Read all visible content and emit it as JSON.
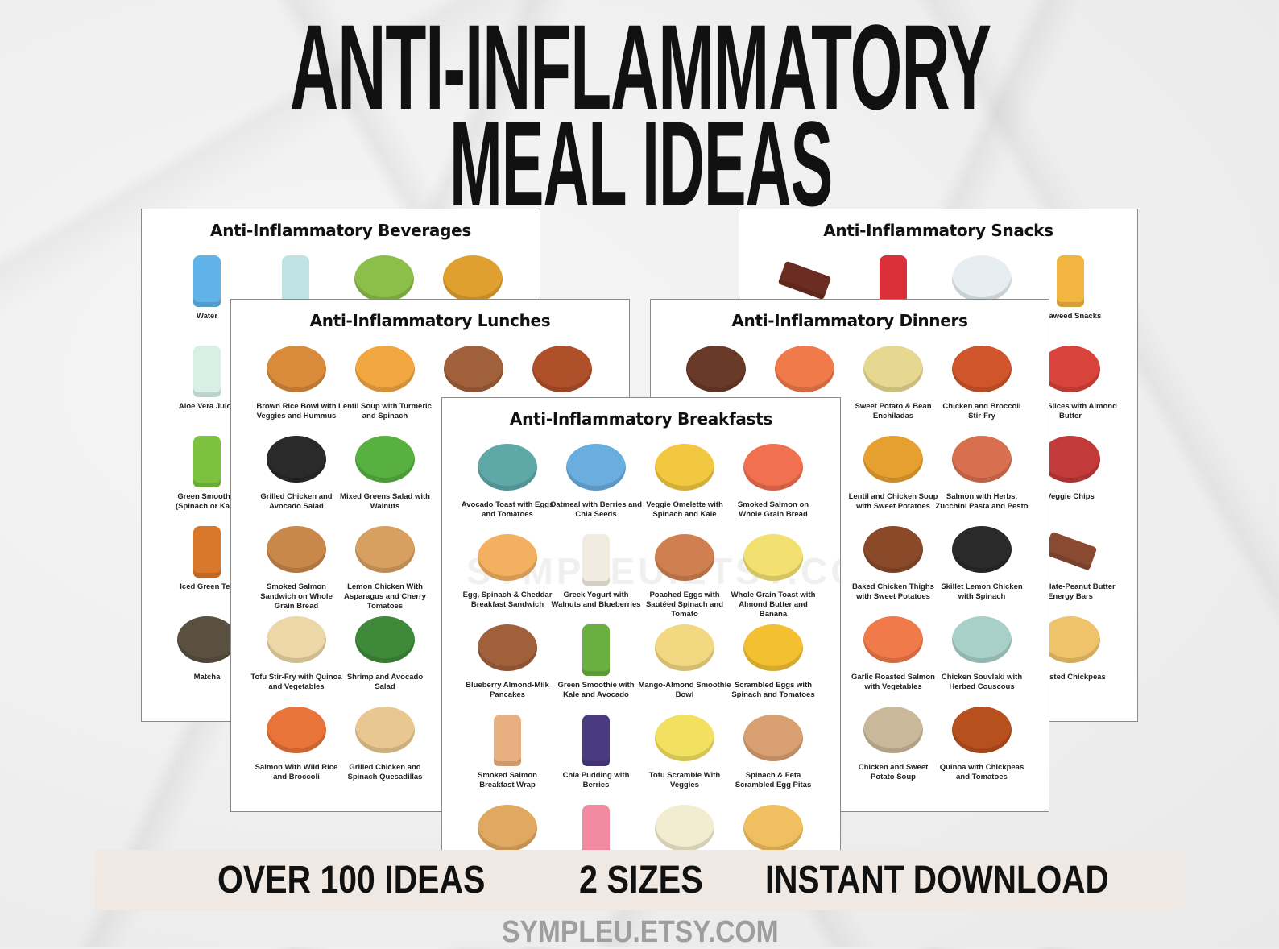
{
  "header": {
    "title_line1": "ANTI-INFLAMMATORY",
    "title_line2": "MEAL IDEAS"
  },
  "pages": {
    "beverages": {
      "title": "Anti-Inflammatory Beverages",
      "items": [
        {
          "label": "Water",
          "color": "#5fb3e8",
          "shape": "drink"
        },
        {
          "label": "",
          "color": "#bfe3e3",
          "shape": "drink"
        },
        {
          "label": "",
          "color": "#8cbf4a",
          "shape": "bowl"
        },
        {
          "label": "",
          "color": "#e0a030",
          "shape": "bowl"
        },
        {
          "label": "Aloe Vera Juice",
          "color": "#d8efe6",
          "shape": "drink"
        },
        {
          "label": "",
          "color": "#ddd",
          "shape": "bowl"
        },
        {
          "label": "",
          "color": "#ddd",
          "shape": "bowl"
        },
        {
          "label": "",
          "color": "#ddd",
          "shape": "bowl"
        },
        {
          "label": "Green Smoothie (Spinach or Kale)",
          "color": "#7cc23e",
          "shape": "drink"
        },
        {
          "label": "",
          "color": "#ddd",
          "shape": "bowl"
        },
        {
          "label": "",
          "color": "#ddd",
          "shape": "bowl"
        },
        {
          "label": "",
          "color": "#ddd",
          "shape": "bowl"
        },
        {
          "label": "Iced Green Tea",
          "color": "#d9772a",
          "shape": "drink"
        },
        {
          "label": "",
          "color": "#ddd",
          "shape": "bowl"
        },
        {
          "label": "",
          "color": "#ddd",
          "shape": "bowl"
        },
        {
          "label": "",
          "color": "#ddd",
          "shape": "bowl"
        },
        {
          "label": "Matcha",
          "color": "#5a5040",
          "shape": "bowl"
        }
      ]
    },
    "snacks": {
      "title": "Anti-Inflammatory Snacks",
      "items": [
        {
          "label": "",
          "color": "#6b2c22",
          "shape": "bar"
        },
        {
          "label": "",
          "color": "#d9303a",
          "shape": "drink"
        },
        {
          "label": "",
          "color": "#e6eef2",
          "shape": "bowl"
        },
        {
          "label": "Seaweed Snacks",
          "color": "#f2b640",
          "shape": "drink"
        },
        {
          "label": "",
          "color": "#ddd",
          "shape": "bowl"
        },
        {
          "label": "",
          "color": "#ddd",
          "shape": "bowl"
        },
        {
          "label": "",
          "color": "#ddd",
          "shape": "bowl"
        },
        {
          "label": "Apple Slices with Almond Butter",
          "color": "#d8433a",
          "shape": "bowl"
        },
        {
          "label": "",
          "color": "#ddd",
          "shape": "bowl"
        },
        {
          "label": "",
          "color": "#ddd",
          "shape": "bowl"
        },
        {
          "label": "",
          "color": "#ddd",
          "shape": "bowl"
        },
        {
          "label": "Veggie Chips",
          "color": "#c23a3a",
          "shape": "bowl"
        },
        {
          "label": "",
          "color": "#ddd",
          "shape": "bowl"
        },
        {
          "label": "",
          "color": "#ddd",
          "shape": "bowl"
        },
        {
          "label": "",
          "color": "#ddd",
          "shape": "bowl"
        },
        {
          "label": "Chocolate-Peanut Butter Energy Bars",
          "color": "#8a4a32",
          "shape": "bar"
        },
        {
          "label": "",
          "color": "#ddd",
          "shape": "bowl"
        },
        {
          "label": "",
          "color": "#ddd",
          "shape": "bowl"
        },
        {
          "label": "",
          "color": "#ddd",
          "shape": "bowl"
        },
        {
          "label": "Roasted Chickpeas",
          "color": "#f0c36a",
          "shape": "bowl"
        }
      ]
    },
    "lunches": {
      "title": "Anti-Inflammatory Lunches",
      "items": [
        {
          "label": "Brown Rice Bowl with Veggies and Hummus",
          "color": "#d98a3a",
          "shape": "bowl"
        },
        {
          "label": "Lentil Soup with Turmeric and Spinach",
          "color": "#f2a640",
          "shape": "bowl"
        },
        {
          "label": "",
          "color": "#a0603a",
          "shape": "bowl"
        },
        {
          "label": "",
          "color": "#b0502a",
          "shape": "bowl"
        },
        {
          "label": "Grilled Chicken and Avocado Salad",
          "color": "#2a2a2a",
          "shape": "bowl"
        },
        {
          "label": "Mixed Greens Salad with Walnuts",
          "color": "#58b040",
          "shape": "bowl"
        },
        {
          "label": "",
          "color": "#ddd",
          "shape": "bowl"
        },
        {
          "label": "",
          "color": "#ddd",
          "shape": "bowl"
        },
        {
          "label": "Smoked Salmon Sandwich on Whole Grain Bread",
          "color": "#c9874a",
          "shape": "bowl"
        },
        {
          "label": "Lemon Chicken With Asparagus and Cherry Tomatoes",
          "color": "#d8a060",
          "shape": "bowl"
        },
        {
          "label": "",
          "color": "#ddd",
          "shape": "bowl"
        },
        {
          "label": "",
          "color": "#ddd",
          "shape": "bowl"
        },
        {
          "label": "Tofu Stir-Fry with Quinoa and Vegetables",
          "color": "#ecd7a6",
          "shape": "bowl"
        },
        {
          "label": "Shrimp and Avocado Salad",
          "color": "#3f8a3a",
          "shape": "bowl"
        },
        {
          "label": "",
          "color": "#ddd",
          "shape": "bowl"
        },
        {
          "label": "",
          "color": "#ddd",
          "shape": "bowl"
        },
        {
          "label": "Salmon With Wild Rice and Broccoli",
          "color": "#e8743a",
          "shape": "bowl"
        },
        {
          "label": "Grilled Chicken and Spinach Quesadillas",
          "color": "#e8c890",
          "shape": "bowl"
        }
      ]
    },
    "dinners": {
      "title": "Anti-Inflammatory Dinners",
      "items": [
        {
          "label": "",
          "color": "#6a3a28",
          "shape": "bowl"
        },
        {
          "label": "",
          "color": "#f07a4a",
          "shape": "bowl"
        },
        {
          "label": "Sweet Potato & Bean Enchiladas",
          "color": "#e6d890",
          "shape": "bowl"
        },
        {
          "label": "Chicken and Broccoli Stir-Fry",
          "color": "#d0552a",
          "shape": "bowl"
        },
        {
          "label": "",
          "color": "#ddd",
          "shape": "bowl"
        },
        {
          "label": "",
          "color": "#ddd",
          "shape": "bowl"
        },
        {
          "label": "Lentil and Chicken Soup with Sweet Potatoes",
          "color": "#e6a030",
          "shape": "bowl"
        },
        {
          "label": "Salmon with Herbs, Zucchini Pasta and Pesto",
          "color": "#d87050",
          "shape": "bowl"
        },
        {
          "label": "",
          "color": "#ddd",
          "shape": "bowl"
        },
        {
          "label": "",
          "color": "#ddd",
          "shape": "bowl"
        },
        {
          "label": "Baked Chicken Thighs with Sweet Potatoes",
          "color": "#8a4a2a",
          "shape": "bowl"
        },
        {
          "label": "Skillet Lemon Chicken with Spinach",
          "color": "#2a2a2a",
          "shape": "bowl"
        },
        {
          "label": "",
          "color": "#ddd",
          "shape": "bowl"
        },
        {
          "label": "",
          "color": "#ddd",
          "shape": "bowl"
        },
        {
          "label": "Garlic Roasted Salmon with Vegetables",
          "color": "#f07a4a",
          "shape": "bowl"
        },
        {
          "label": "Chicken Souvlaki with Herbed Couscous",
          "color": "#a8d0c8",
          "shape": "bowl"
        },
        {
          "label": "",
          "color": "#ddd",
          "shape": "bowl"
        },
        {
          "label": "",
          "color": "#ddd",
          "shape": "bowl"
        },
        {
          "label": "Chicken and Sweet Potato Soup",
          "color": "#c9b89a",
          "shape": "bowl"
        },
        {
          "label": "Quinoa with Chickpeas and Tomatoes",
          "color": "#b8501e",
          "shape": "bowl"
        }
      ]
    },
    "breakfasts": {
      "title": "Anti-Inflammatory Breakfasts",
      "watermark": "SYMPLEU.ETSY.COM",
      "items": [
        {
          "label": "Avocado Toast with Eggs and Tomatoes",
          "color": "#5fa8a8",
          "shape": "bowl"
        },
        {
          "label": "Oatmeal with Berries and Chia Seeds",
          "color": "#6aaee0",
          "shape": "bowl"
        },
        {
          "label": "Veggie Omelette with Spinach and Kale",
          "color": "#f2c840",
          "shape": "bowl"
        },
        {
          "label": "Smoked Salmon on Whole Grain Bread",
          "color": "#f07050",
          "shape": "bowl"
        },
        {
          "label": "Egg, Spinach & Cheddar Breakfast Sandwich",
          "color": "#f2b060",
          "shape": "bowl"
        },
        {
          "label": "Greek Yogurt with Walnuts and Blueberries",
          "color": "#f2ece0",
          "shape": "drink"
        },
        {
          "label": "Poached Eggs with Sautéed Spinach and Tomato",
          "color": "#d08050",
          "shape": "bowl"
        },
        {
          "label": "Whole Grain Toast with Almond Butter and Banana",
          "color": "#f2e070",
          "shape": "bowl"
        },
        {
          "label": "Blueberry Almond-Milk Pancakes",
          "color": "#a0603a",
          "shape": "bowl"
        },
        {
          "label": "Green Smoothie with Kale and Avocado",
          "color": "#6ab040",
          "shape": "drink"
        },
        {
          "label": "Mango-Almond Smoothie Bowl",
          "color": "#f2d880",
          "shape": "bowl"
        },
        {
          "label": "Scrambled Eggs with Spinach and Tomatoes",
          "color": "#f2c030",
          "shape": "bowl"
        },
        {
          "label": "Smoked Salmon Breakfast Wrap",
          "color": "#e8b080",
          "shape": "drink"
        },
        {
          "label": "Chia Pudding with Berries",
          "color": "#4a3a80",
          "shape": "drink"
        },
        {
          "label": "Tofu Scramble With Veggies",
          "color": "#f2e060",
          "shape": "bowl"
        },
        {
          "label": "Spinach & Feta Scrambled Egg Pitas",
          "color": "#d8a070",
          "shape": "bowl"
        },
        {
          "label": "",
          "color": "#e0a860",
          "shape": "bowl"
        },
        {
          "label": "",
          "color": "#f08aa0",
          "shape": "drink"
        },
        {
          "label": "",
          "color": "#f2ecd0",
          "shape": "bowl"
        },
        {
          "label": "",
          "color": "#f0c060",
          "shape": "bowl"
        }
      ]
    }
  },
  "banner": {
    "features": [
      "OVER 100 IDEAS",
      "2 SIZES",
      "INSTANT DOWNLOAD"
    ],
    "background": "#f0e8e2"
  },
  "footer": {
    "shop_url": "SYMPLEU.ETSY.COM"
  }
}
